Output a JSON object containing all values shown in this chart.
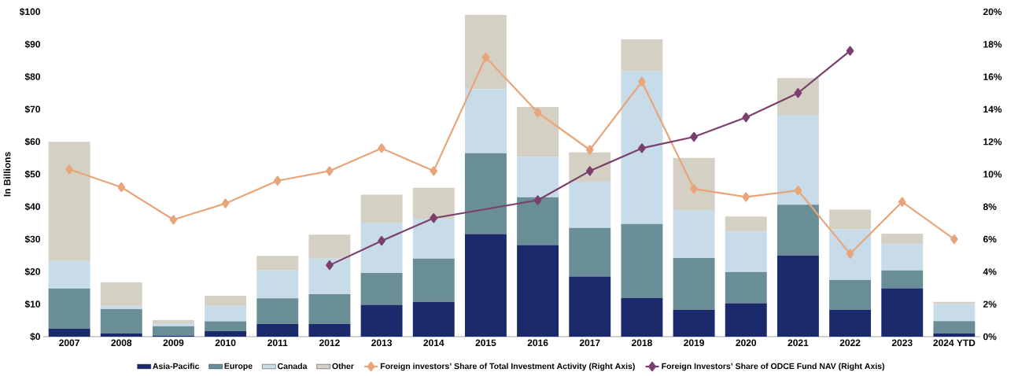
{
  "chart_data": {
    "type": "bar",
    "stacked": true,
    "categories": [
      "2007",
      "2008",
      "2009",
      "2010",
      "2011",
      "2012",
      "2013",
      "2014",
      "2015",
      "2016",
      "2017",
      "2018",
      "2019",
      "2020",
      "2021",
      "2022",
      "2023",
      "2024 YTD"
    ],
    "series": [
      {
        "name": "Asia-Pacific",
        "color": "#1a2a6c",
        "values": [
          2.5,
          1.0,
          0.3,
          1.7,
          3.9,
          3.9,
          9.8,
          10.7,
          31.6,
          28.2,
          18.5,
          11.9,
          8.3,
          10.3,
          25.0,
          8.3,
          14.9,
          1.0
        ]
      },
      {
        "name": "Europe",
        "color": "#6a8e95",
        "values": [
          12.3,
          7.5,
          2.9,
          3.0,
          7.9,
          9.2,
          9.8,
          13.3,
          24.9,
          14.7,
          15.0,
          22.8,
          15.9,
          9.6,
          15.6,
          9.1,
          5.5,
          3.8
        ]
      },
      {
        "name": "Canada",
        "color": "#c8dbe8",
        "values": [
          8.7,
          1.0,
          0.9,
          4.8,
          8.6,
          10.9,
          15.5,
          12.3,
          19.7,
          12.5,
          14.2,
          47.1,
          14.8,
          12.5,
          27.7,
          15.7,
          8.1,
          5.3
        ]
      },
      {
        "name": "Other",
        "color": "#d5d0c4",
        "values": [
          36.5,
          7.2,
          1.0,
          3.1,
          4.5,
          7.4,
          8.6,
          9.5,
          22.8,
          15.3,
          9.0,
          9.7,
          16.0,
          4.6,
          11.3,
          6.0,
          3.2,
          0.6
        ]
      },
      {
        "name": "Foreign investors’ Share of Total Investment Activity (Right Axis)",
        "type": "line",
        "axis": "y2",
        "color": "#e8a57a",
        "values": [
          10.3,
          9.2,
          7.2,
          8.2,
          9.6,
          10.2,
          11.6,
          10.2,
          17.2,
          13.8,
          11.5,
          15.7,
          9.1,
          8.6,
          9.0,
          5.1,
          8.3,
          6.0
        ]
      },
      {
        "name": "Foreign Investors’ Share of ODCE Fund NAV (Right Axis)",
        "type": "line",
        "axis": "y2",
        "color": "#7b3f6e",
        "values": [
          null,
          null,
          null,
          null,
          null,
          4.4,
          5.9,
          7.3,
          null,
          8.4,
          10.2,
          11.6,
          12.3,
          13.5,
          15.0,
          17.6,
          null,
          null
        ]
      }
    ],
    "ylabel": "In Billions",
    "ylim": [
      0,
      100
    ],
    "yticks": [
      {
        "value": 0,
        "label": "$0"
      },
      {
        "value": 10,
        "label": "$10"
      },
      {
        "value": 20,
        "label": "$20"
      },
      {
        "value": 30,
        "label": "$30"
      },
      {
        "value": 40,
        "label": "$40"
      },
      {
        "value": 50,
        "label": "$50"
      },
      {
        "value": 60,
        "label": "$60"
      },
      {
        "value": 70,
        "label": "$70"
      },
      {
        "value": 80,
        "label": "$80"
      },
      {
        "value": 90,
        "label": "$90"
      },
      {
        "value": 100,
        "label": "$100"
      }
    ],
    "y2lim": [
      0,
      20
    ],
    "y2ticks": [
      {
        "value": 0,
        "label": "0%"
      },
      {
        "value": 2,
        "label": "2%"
      },
      {
        "value": 4,
        "label": "4%"
      },
      {
        "value": 6,
        "label": "6%"
      },
      {
        "value": 8,
        "label": "8%"
      },
      {
        "value": 10,
        "label": "10%"
      },
      {
        "value": 12,
        "label": "12%"
      },
      {
        "value": 14,
        "label": "14%"
      },
      {
        "value": 16,
        "label": "16%"
      },
      {
        "value": 18,
        "label": "18%"
      },
      {
        "value": 20,
        "label": "20%"
      }
    ],
    "marker": "diamond",
    "legend": "bottom"
  }
}
